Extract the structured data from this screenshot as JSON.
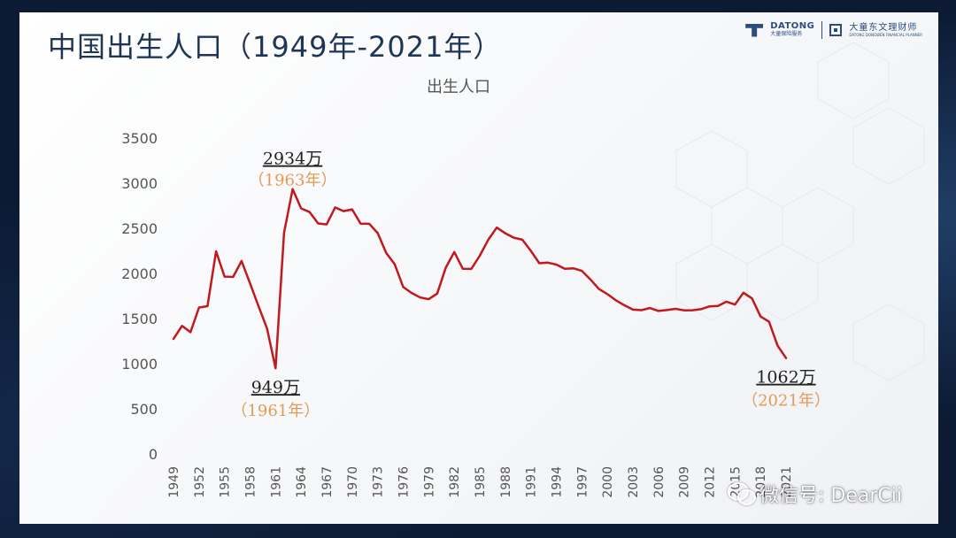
{
  "title": "中国出生人口（1949年-2021年）",
  "logo": {
    "brand_main": "DATONG",
    "brand_sub": "大童保险服务",
    "brand2_main": "大童东文理财师",
    "brand2_sub": "DATONG DONGWEN FINANCIAL PLANNER"
  },
  "watermark": "微信号: DearCii",
  "colors": {
    "line": "#c0191e",
    "annotation_value": "#222222",
    "annotation_year": "#e39a57",
    "axis_text": "#555555",
    "title": "#1e3554"
  },
  "chart_data": {
    "type": "line",
    "title": "出生人口",
    "xlabel": "",
    "ylabel": "",
    "ylim": [
      0,
      3500
    ],
    "yticks": [
      0,
      500,
      1000,
      1500,
      2000,
      2500,
      3000,
      3500
    ],
    "xlim": [
      1949,
      2021
    ],
    "xticks": [
      "1949",
      "1952",
      "1955",
      "1958",
      "1961",
      "1964",
      "1967",
      "1970",
      "1973",
      "1976",
      "1979",
      "1982",
      "1985",
      "1988",
      "1991",
      "1994",
      "1997",
      "2000",
      "2003",
      "2006",
      "2009",
      "2012",
      "2015",
      "2018",
      "2021"
    ],
    "grid": false,
    "legend": "none",
    "series": [
      {
        "name": "",
        "x": [
          1949,
          1950,
          1951,
          1952,
          1953,
          1954,
          1955,
          1956,
          1957,
          1958,
          1959,
          1960,
          1961,
          1962,
          1963,
          1964,
          1965,
          1966,
          1967,
          1968,
          1969,
          1970,
          1971,
          1972,
          1973,
          1974,
          1975,
          1976,
          1977,
          1978,
          1979,
          1980,
          1981,
          1982,
          1983,
          1984,
          1985,
          1986,
          1987,
          1988,
          1989,
          1990,
          1991,
          1992,
          1993,
          1994,
          1995,
          1996,
          1997,
          1998,
          1999,
          2000,
          2001,
          2002,
          2003,
          2004,
          2005,
          2006,
          2007,
          2008,
          2009,
          2010,
          2011,
          2012,
          2013,
          2014,
          2015,
          2016,
          2017,
          2018,
          2019,
          2020,
          2021
        ],
        "values": [
          1275,
          1419,
          1349,
          1622,
          1637,
          2245,
          1965,
          1961,
          2138,
          1889,
          1635,
          1389,
          949,
          2451,
          2934,
          2721,
          2679,
          2554,
          2543,
          2731,
          2690,
          2710,
          2551,
          2550,
          2447,
          2226,
          2102,
          1849,
          1783,
          1733,
          1715,
          1776,
          2064,
          2237,
          2052,
          2050,
          2196,
          2374,
          2508,
          2445,
          2396,
          2374,
          2250,
          2113,
          2120,
          2098,
          2052,
          2057,
          2028,
          1934,
          1827,
          1771,
          1702,
          1647,
          1599,
          1593,
          1617,
          1584,
          1594,
          1608,
          1591,
          1592,
          1604,
          1635,
          1640,
          1687,
          1655,
          1786,
          1723,
          1523,
          1465,
          1200,
          1062
        ]
      }
    ],
    "annotations": [
      {
        "x": 1963,
        "y": 2934,
        "value": "2934万",
        "year": "（1963年）",
        "placement": "above"
      },
      {
        "x": 1961,
        "y": 949,
        "value": "949万",
        "year": "（1961年）",
        "placement": "below"
      },
      {
        "x": 2021,
        "y": 1062,
        "value": "1062万",
        "year": "（2021年）",
        "placement": "below"
      }
    ]
  }
}
